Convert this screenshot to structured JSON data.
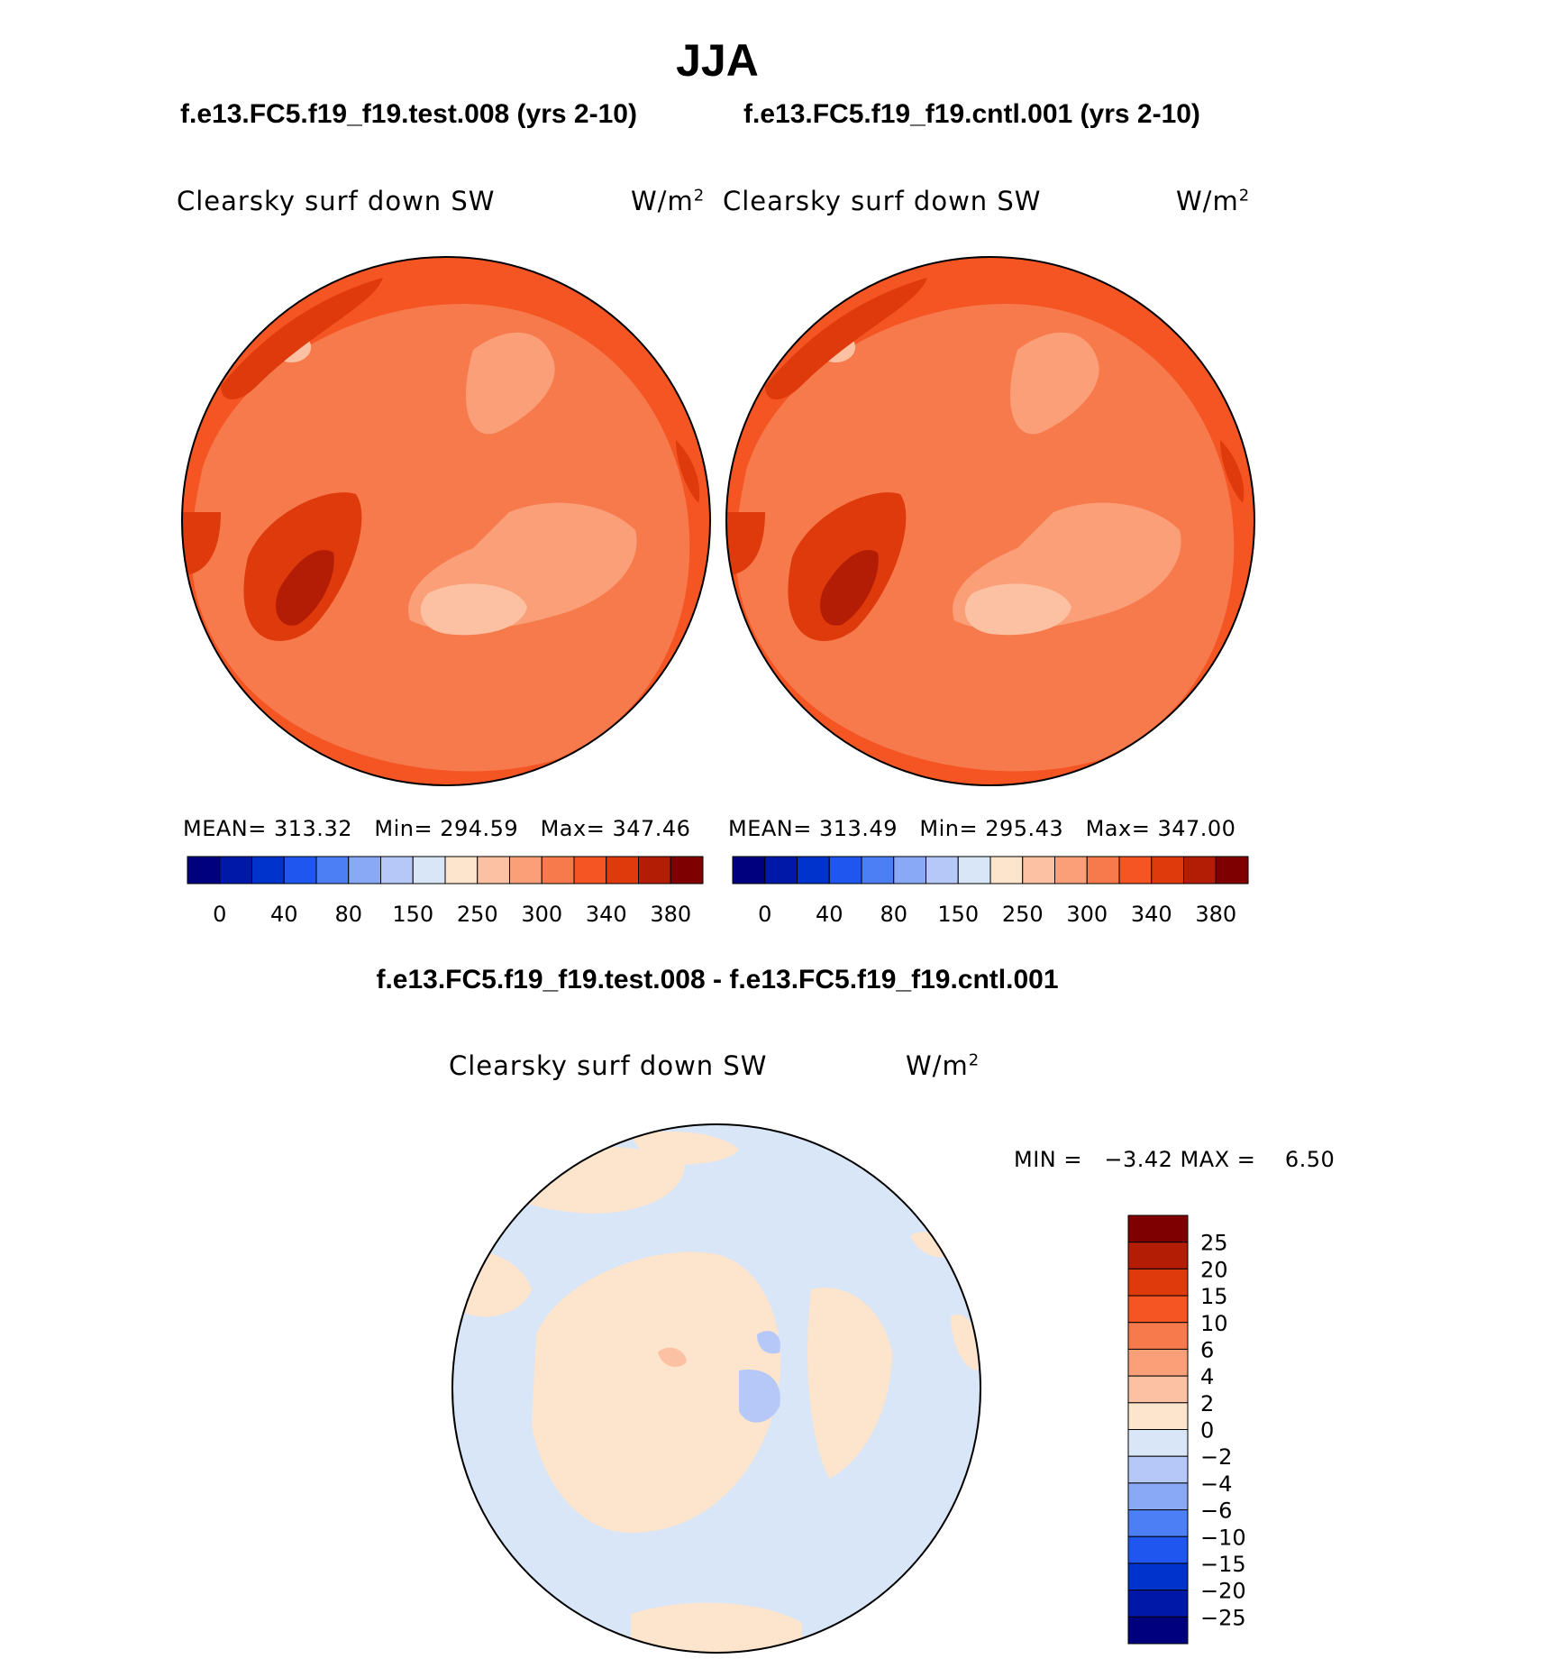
{
  "header": {
    "season": "JJA",
    "case_left": "f.e13.FC5.f19_f19.test.008 (yrs 2-10)",
    "case_right": "f.e13.FC5.f19_f19.cntl.001 (yrs 2-10)",
    "diff_title": "f.e13.FC5.f19_f19.test.008 - f.e13.FC5.f19_f19.cntl.001"
  },
  "panels": {
    "left": {
      "variable": "Clearsky surf down SW",
      "units_base": "W/m",
      "units_exp": "2",
      "mean_label": "MEAN=",
      "mean": "313.32",
      "min_label": "Min=",
      "min": "294.59",
      "max_label": "Max=",
      "max": "347.46"
    },
    "right": {
      "variable": "Clearsky surf down SW",
      "units_base": "W/m",
      "units_exp": "2",
      "mean_label": "MEAN=",
      "mean": "313.49",
      "min_label": "Min=",
      "min": "295.43",
      "max_label": "Max=",
      "max": "347.00"
    },
    "diff": {
      "variable": "Clearsky surf down SW",
      "units_base": "W/m",
      "units_exp": "2",
      "minmax_text": "MIN =   −3.42 MAX =    6.50"
    }
  },
  "chart_data": [
    {
      "type": "heatmap",
      "title": "f.e13.FC5.f19_f19.test.008 (yrs 2-10)",
      "projection": "north polar stereographic",
      "variable": "Clearsky surf down SW",
      "units": "W/m2",
      "stats": {
        "mean": 313.32,
        "min": 294.59,
        "max": 347.46
      },
      "colorbar": {
        "orientation": "horizontal",
        "tick_labels": [
          "0",
          "40",
          "80",
          "150",
          "250",
          "300",
          "340",
          "380"
        ],
        "colors": [
          "#00007f",
          "#0018a8",
          "#0033cc",
          "#1f56f0",
          "#4c7ef5",
          "#89a9f7",
          "#b5c8f8",
          "#d8e6f7",
          "#fde4cd",
          "#fcc1a2",
          "#fa9f78",
          "#f77a4c",
          "#f45523",
          "#de3a0c",
          "#b31d06",
          "#7f0000"
        ]
      }
    },
    {
      "type": "heatmap",
      "title": "f.e13.FC5.f19_f19.cntl.001 (yrs 2-10)",
      "projection": "north polar stereographic",
      "variable": "Clearsky surf down SW",
      "units": "W/m2",
      "stats": {
        "mean": 313.49,
        "min": 295.43,
        "max": 347.0
      },
      "colorbar": {
        "orientation": "horizontal",
        "tick_labels": [
          "0",
          "40",
          "80",
          "150",
          "250",
          "300",
          "340",
          "380"
        ],
        "colors": [
          "#00007f",
          "#0018a8",
          "#0033cc",
          "#1f56f0",
          "#4c7ef5",
          "#89a9f7",
          "#b5c8f8",
          "#d8e6f7",
          "#fde4cd",
          "#fcc1a2",
          "#fa9f78",
          "#f77a4c",
          "#f45523",
          "#de3a0c",
          "#b31d06",
          "#7f0000"
        ]
      }
    },
    {
      "type": "heatmap",
      "title": "f.e13.FC5.f19_f19.test.008 - f.e13.FC5.f19_f19.cntl.001",
      "projection": "north polar stereographic",
      "variable": "Clearsky surf down SW",
      "units": "W/m2",
      "stats": {
        "min": -3.42,
        "max": 6.5
      },
      "colorbar": {
        "orientation": "vertical",
        "tick_labels": [
          "25",
          "20",
          "15",
          "10",
          "6",
          "4",
          "2",
          "0",
          "−2",
          "−4",
          "−6",
          "−10",
          "−15",
          "−20",
          "−25"
        ],
        "colors": [
          "#7f0000",
          "#b31d06",
          "#de3a0c",
          "#f45523",
          "#f77a4c",
          "#fa9f78",
          "#fcc1a2",
          "#fde4cd",
          "#d8e6f7",
          "#b5c8f8",
          "#89a9f7",
          "#4c7ef5",
          "#1f56f0",
          "#0033cc",
          "#0018a8",
          "#00007f"
        ]
      }
    }
  ]
}
